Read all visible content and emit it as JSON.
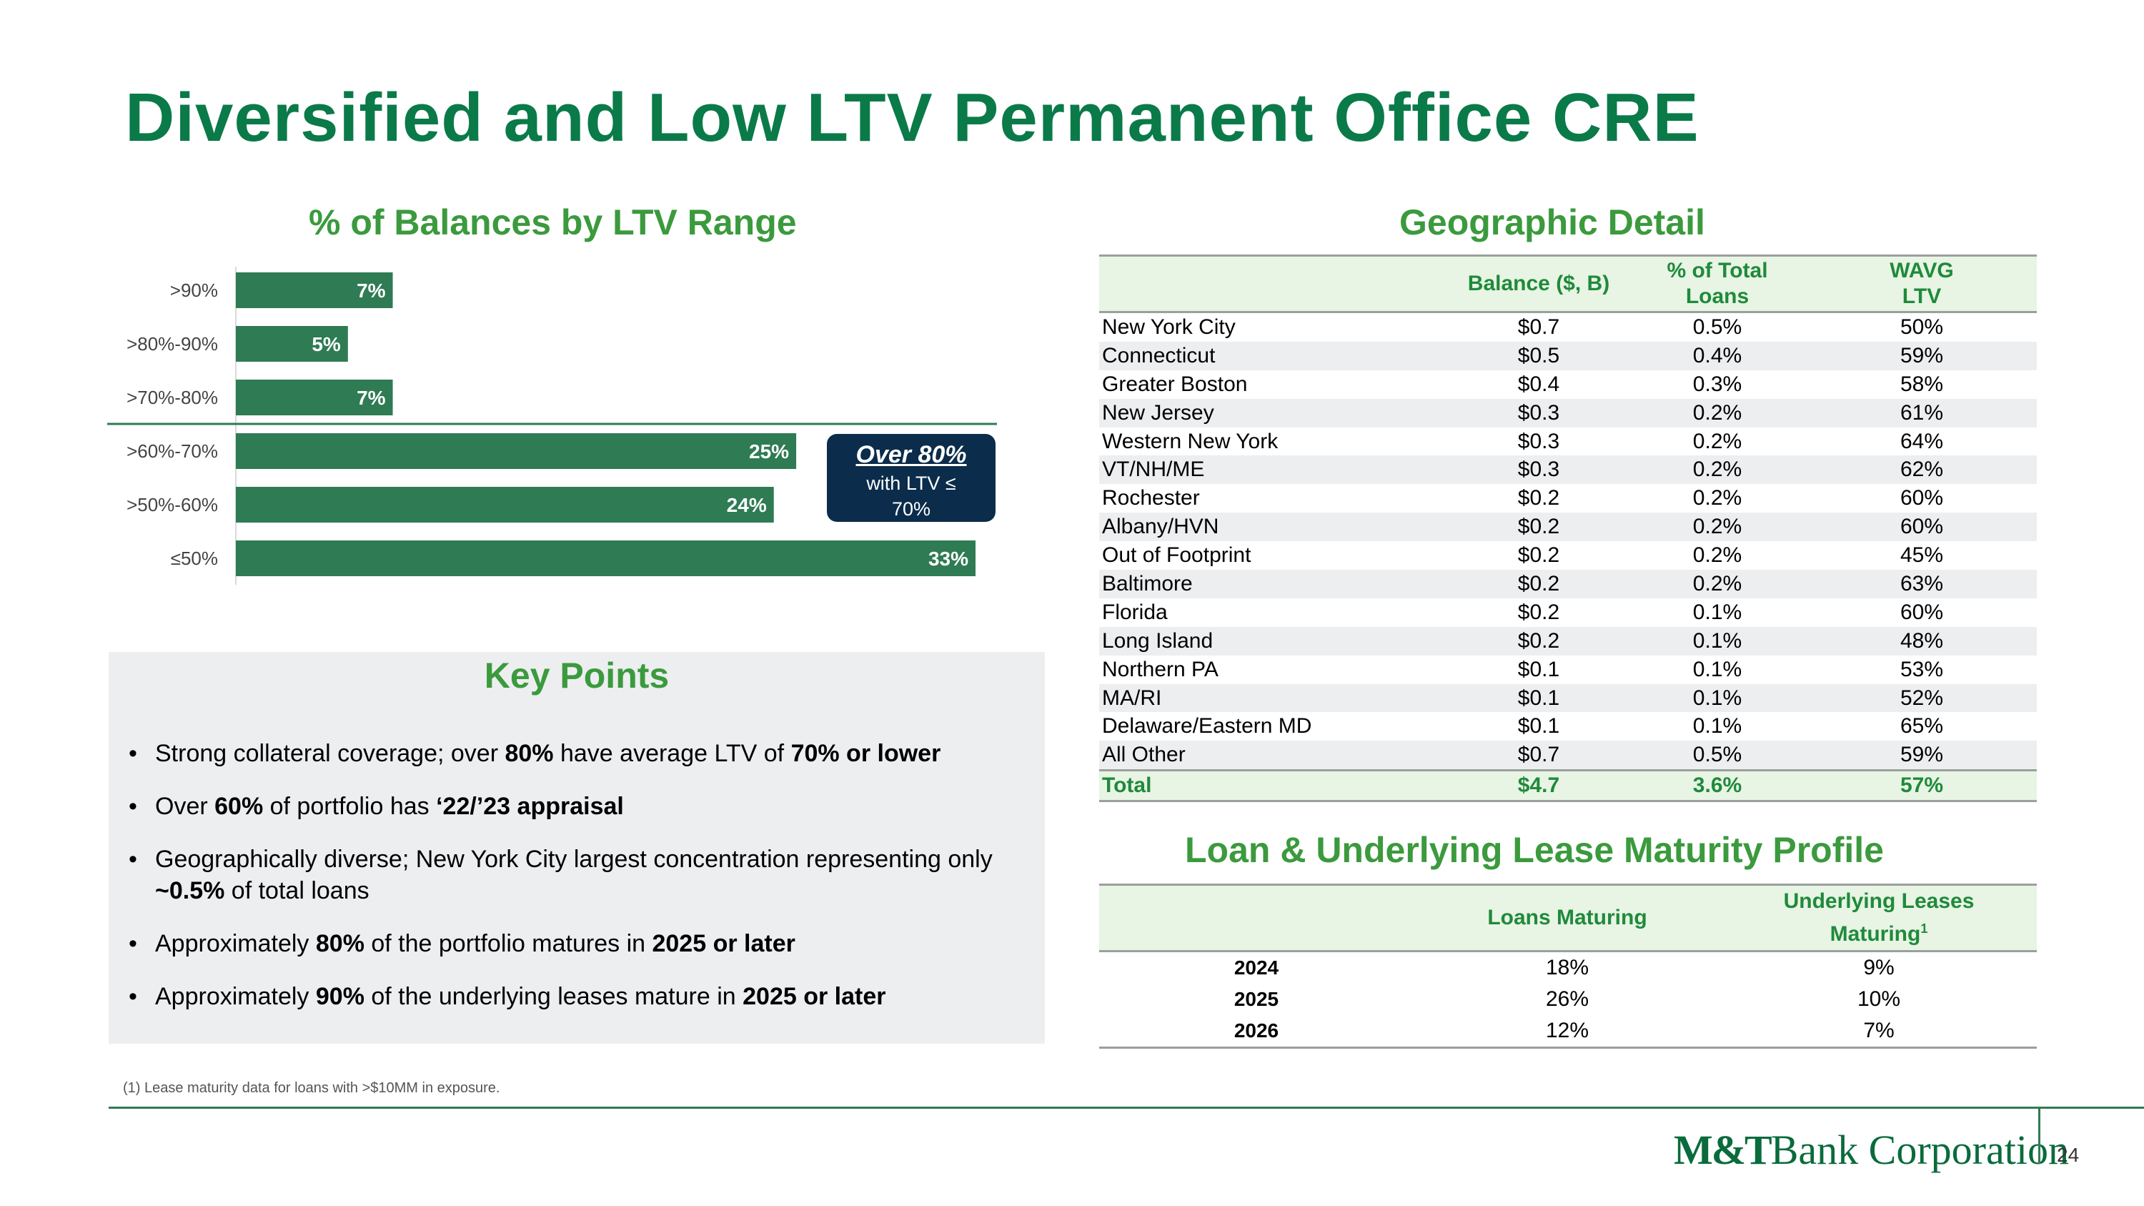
{
  "title": "Diversified and Low LTV Permanent Office CRE",
  "chart_title": "% of Balances by LTV Range",
  "chart_data": {
    "type": "bar",
    "orientation": "horizontal",
    "title": "% of Balances by LTV Range",
    "categories": [
      ">90%",
      ">80%-90%",
      ">70%-80%",
      ">60%-70%",
      ">50%-60%",
      "≤50%"
    ],
    "values": [
      7,
      5,
      7,
      25,
      24,
      33
    ],
    "value_labels": [
      "7%",
      "5%",
      "7%",
      "25%",
      "24%",
      "33%"
    ],
    "value_unit": "%",
    "xlim": [
      0,
      35
    ],
    "grid": false,
    "bar_color": "#2f7b54"
  },
  "callout": {
    "head": "Over 80%",
    "body": "with LTV ≤ 70%"
  },
  "key_points": {
    "title": "Key Points",
    "items": [
      [
        [
          "Strong collateral coverage; over ",
          false
        ],
        [
          "80%",
          true
        ],
        [
          " have average LTV of ",
          false
        ],
        [
          "70% or lower",
          true
        ]
      ],
      [
        [
          "Over ",
          false
        ],
        [
          "60%",
          true
        ],
        [
          " of portfolio has ",
          false
        ],
        [
          "‘22/’23 appraisal",
          true
        ]
      ],
      [
        [
          "Geographically diverse; New York City largest concentration representing only ",
          false
        ],
        [
          "~0.5%",
          true
        ],
        [
          " of total loans",
          false
        ]
      ],
      [
        [
          "Approximately ",
          false
        ],
        [
          "80%",
          true
        ],
        [
          " of the portfolio matures in ",
          false
        ],
        [
          "2025 or later",
          true
        ]
      ],
      [
        [
          "Approximately ",
          false
        ],
        [
          "90%",
          true
        ],
        [
          " of the underlying leases mature in ",
          false
        ],
        [
          "2025 or later",
          true
        ]
      ]
    ]
  },
  "geo": {
    "title": "Geographic Detail",
    "headers": [
      "",
      "Balance ($, B)",
      "% of Total Loans",
      "WAVG LTV"
    ],
    "rows": [
      [
        "New York City",
        "$0.7",
        "0.5%",
        "50%"
      ],
      [
        "Connecticut",
        "$0.5",
        "0.4%",
        "59%"
      ],
      [
        "Greater Boston",
        "$0.4",
        "0.3%",
        "58%"
      ],
      [
        "New Jersey",
        "$0.3",
        "0.2%",
        "61%"
      ],
      [
        "Western New York",
        "$0.3",
        "0.2%",
        "64%"
      ],
      [
        "VT/NH/ME",
        "$0.3",
        "0.2%",
        "62%"
      ],
      [
        "Rochester",
        "$0.2",
        "0.2%",
        "60%"
      ],
      [
        "Albany/HVN",
        "$0.2",
        "0.2%",
        "60%"
      ],
      [
        "Out of Footprint",
        "$0.2",
        "0.2%",
        "45%"
      ],
      [
        "Baltimore",
        "$0.2",
        "0.2%",
        "63%"
      ],
      [
        "Florida",
        "$0.2",
        "0.1%",
        "60%"
      ],
      [
        "Long Island",
        "$0.2",
        "0.1%",
        "48%"
      ],
      [
        "Northern PA",
        "$0.1",
        "0.1%",
        "53%"
      ],
      [
        "MA/RI",
        "$0.1",
        "0.1%",
        "52%"
      ],
      [
        "Delaware/Eastern MD",
        "$0.1",
        "0.1%",
        "65%"
      ],
      [
        "All Other",
        "$0.7",
        "0.5%",
        "59%"
      ]
    ],
    "total": [
      "Total",
      "$4.7",
      "3.6%",
      "57%"
    ]
  },
  "maturity": {
    "title": "Loan & Underlying Lease Maturity Profile",
    "headers": [
      "",
      "Loans Maturing",
      "Underlying Leases Maturing",
      "1"
    ],
    "rows": [
      [
        "2024",
        "18%",
        "9%"
      ],
      [
        "2025",
        "26%",
        "10%"
      ],
      [
        "2026",
        "12%",
        "7%"
      ]
    ]
  },
  "footnote": "(1) Lease maturity data for loans with >$10MM in exposure.",
  "logo": {
    "bold": "M&T",
    "rest": "Bank Corporation"
  },
  "page_number": "24"
}
